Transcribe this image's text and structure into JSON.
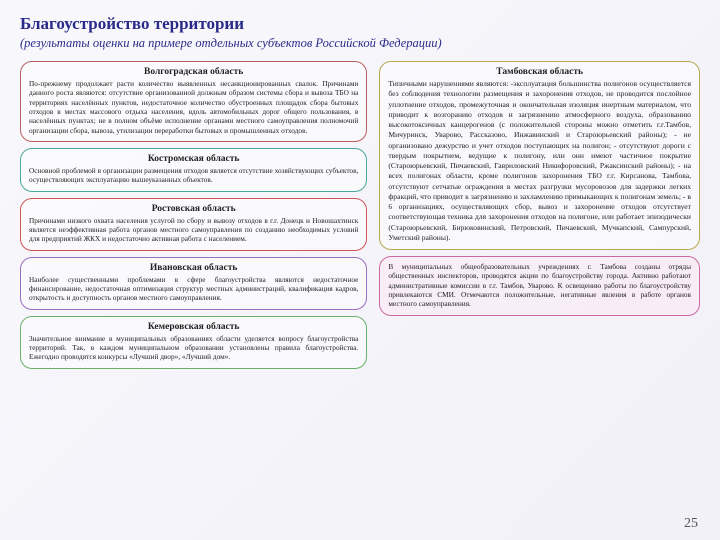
{
  "title": "Благоустройство территории",
  "subtitle": "(результаты оценки на примере отдельных субъектов Российской Федерации)",
  "pagenum": "25",
  "left": [
    {
      "header": "Волгоградская область",
      "body": "По-прежнему продолжает расти количество выявленных несанкционированных свалок. Причинами данного роста являются: отсутствие организованной должным образом системы сбора и вывоза ТБО на территориях населённых пунктов, недостаточное количество обустроенных площадок сбора бытовых отходов в местах массового отдыха населения, вдоль автомобильных дорог общего пользования, в населённых пунктах; не в полном объёме исполнение органами местного самоуправления полномочий организации сбора, вывоза, утилизации переработки бытовых и промышленных отходов."
    },
    {
      "header": "Костромская область",
      "body": "Основной проблемой в организации размещения отходов является отсутствие хозяйствующих субъектов, осуществляющих эксплуатацию вышеуказанных объектов."
    },
    {
      "header": "Ростовская область",
      "body": "Причинами низкого охвата населения услугой по сбору и вывозу отходов в г.г. Донецк и Новошахтинск является неэффективная работа органов местного самоуправления по созданию необходимых условий для предприятий ЖКХ и недостаточно активная работа с населением."
    },
    {
      "header": "Ивановская область",
      "body": "Наиболее существенными проблемами в сфере благоустройства являются недостаточное финансирование, недостаточная оптимизация структур местных администраций, квалификация кадров, открытость и доступность органов местного самоуправления."
    },
    {
      "header": "Кемеровская область",
      "body": "Значительное внимание в муниципальных образованиях области уделяется вопросу благоустройства территорий. Так, в каждом муниципальном образовании установлены правила благоустройства. Ежегодно проводятся конкурсы «Лучший двор», «Лучший дом»."
    }
  ],
  "right": {
    "header": "Тамбовская область",
    "body": "Типичными нарушениями являются: -эксплуатация большинства полигонов осуществляется без соблюдения технологии размещения и захоронения отходов, не проводится послойное уплотнение отходов, промежуточная и окончательная изоляция инертным материалом, что приводит к возгоранию отходов и загрязнению атмосферного воздуха, образованию высокотоксичных канцерогенов (с положительной стороны можно отметить г.г.Тамбов, Мичуринск, Уварово, Рассказово, Инжавинский и Староюрьевский районы); - не организовано дежурство и учет отходов поступающих на полигон; - отсутствуют дороги с твердым покрытием, ведущие к полигону, или они имеют частичное покрытие (Староюрьевский, Пичаевский, Гавриловский Никифоровский, Ржаксинский районы); - на всех полигонах области, кроме полигонов захоронения ТБО г.г. Кирсанова, Тамбова, отсутствуют сетчатые ограждения в местах разгрузки мусоровозов для задержки легких фракций, что приводит к загрязнению и захламлению примыкающих к полигонам земель; - в 6 организациях, осуществляющих сбор, вывоз и захоронение отходов отсутствует соответствующая техника для захоронения отходов на полигоне, или работает эпизодически (Староюрьевский, Бирюковинский, Петровский, Пичаевский, Мучкапский, Сампурский, Уметский районы)."
  },
  "extra": {
    "body": "В муниципальных общеобразовательных учреждениях г. Тамбова созданы отряды общественных инспекторов, проводятся акции по благоустройству города. Активно работают административные комиссии в г.г. Тамбов, Уварово. К освещению работы по благоустройству привлекаются СМИ. Отмечаются положительные, негативные явления в работе органов местного самоуправления."
  }
}
